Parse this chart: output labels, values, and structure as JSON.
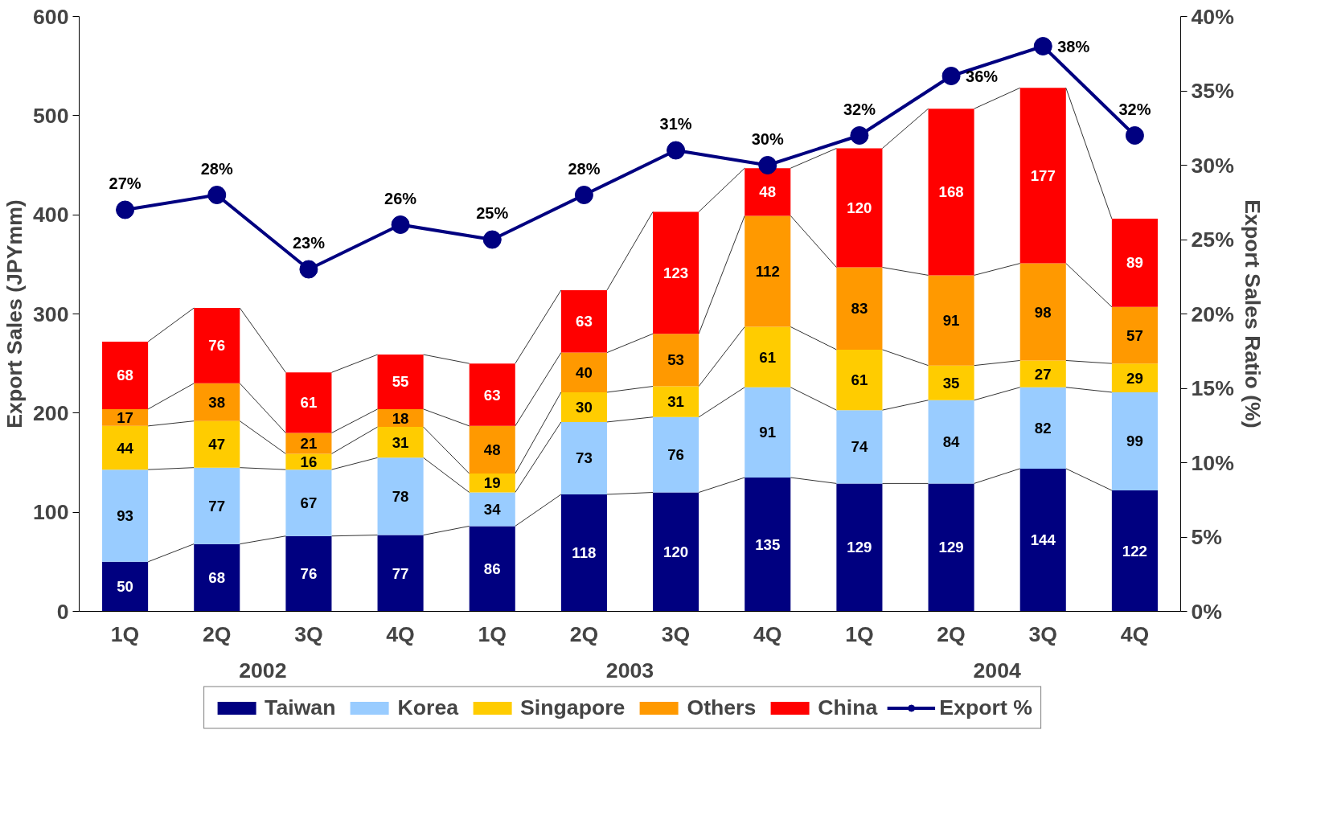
{
  "chart_data": {
    "type": "bar",
    "stacked": true,
    "ylabel": "Export Sales (JPYmm)",
    "y2label": "Export Sales Ratio (%)",
    "categories": [
      "1Q",
      "2Q",
      "3Q",
      "4Q",
      "1Q",
      "2Q",
      "3Q",
      "4Q",
      "1Q",
      "2Q",
      "3Q",
      "4Q"
    ],
    "annotations": [
      "2002",
      "2003",
      "2004"
    ],
    "series": [
      {
        "name": "Taiwan",
        "color": "#000080",
        "values": [
          50,
          68,
          76,
          77,
          86,
          118,
          120,
          135,
          129,
          129,
          144,
          122
        ]
      },
      {
        "name": "Korea",
        "color": "#99ccff",
        "values": [
          93,
          77,
          67,
          78,
          34,
          73,
          76,
          91,
          74,
          84,
          82,
          99
        ]
      },
      {
        "name": "Singapore",
        "color": "#ffcc00",
        "values": [
          44,
          47,
          16,
          31,
          19,
          30,
          31,
          61,
          61,
          35,
          27,
          29
        ]
      },
      {
        "name": "Others",
        "color": "#ff9900",
        "values": [
          17,
          38,
          21,
          18,
          48,
          40,
          53,
          112,
          83,
          91,
          98,
          57
        ]
      },
      {
        "name": "China",
        "color": "#ff0000",
        "values": [
          68,
          76,
          61,
          55,
          63,
          63,
          123,
          48,
          120,
          168,
          177,
          89
        ]
      },
      {
        "name": "Export %",
        "type": "line",
        "axis": "y2",
        "color": "#000080",
        "marker": "circle",
        "line_style": "solid",
        "values": [
          27,
          28,
          23,
          26,
          25,
          28,
          31,
          30,
          32,
          36,
          38,
          32
        ],
        "value_labels": [
          "27%",
          "28%",
          "23%",
          "26%",
          "25%",
          "28%",
          "31%",
          "30%",
          "32%",
          "36%",
          "38%",
          "32%"
        ]
      }
    ],
    "data_labels": true,
    "ylim": [
      0,
      600
    ],
    "yticks": [
      0,
      100,
      200,
      300,
      400,
      500,
      600
    ],
    "y2lim": [
      0,
      40
    ],
    "y2ticks": [
      {
        "value": 0,
        "label": "0%"
      },
      {
        "value": 5,
        "label": "5%"
      },
      {
        "value": 10,
        "label": "10%"
      },
      {
        "value": 15,
        "label": "15%"
      },
      {
        "value": 20,
        "label": "20%"
      },
      {
        "value": 25,
        "label": "25%"
      },
      {
        "value": 30,
        "label": "30%"
      },
      {
        "value": 35,
        "label": "35%"
      },
      {
        "value": 40,
        "label": "40%"
      }
    ],
    "grid": false,
    "legend": "bottom"
  }
}
